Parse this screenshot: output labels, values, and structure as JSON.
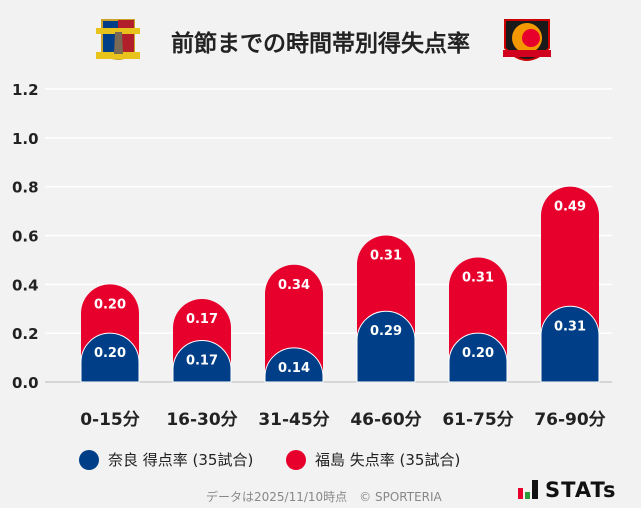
{
  "title": "前節までの時間帯別得失点率",
  "logos": {
    "left": "奈良クラブ エンブレム",
    "right": "FUKUSHIMA UNITED FC"
  },
  "colors": {
    "nara": "#003f87",
    "fukushima": "#e8002d",
    "background": "#f2f2f2",
    "grid": "#ffffff"
  },
  "chart_data": {
    "type": "bar",
    "stacked": true,
    "categories": [
      "0-15分",
      "16-30分",
      "31-45分",
      "46-60分",
      "61-75分",
      "76-90分"
    ],
    "series": [
      {
        "name": "奈良 得点率 (35試合)",
        "values": [
          0.2,
          0.17,
          0.14,
          0.29,
          0.2,
          0.31
        ],
        "color": "#003f87"
      },
      {
        "name": "福島 失点率 (35試合)",
        "values": [
          0.2,
          0.17,
          0.34,
          0.31,
          0.31,
          0.49
        ],
        "color": "#e8002d"
      }
    ],
    "ylim": [
      0,
      1.2
    ],
    "yticks": [
      "0.0",
      "0.2",
      "0.4",
      "0.6",
      "0.8",
      "1.0",
      "1.2"
    ],
    "grid": true,
    "legend_placement": "bottom"
  },
  "footer": "データは2025/11/10時点　© SPORTERIA",
  "brand": "STATs"
}
